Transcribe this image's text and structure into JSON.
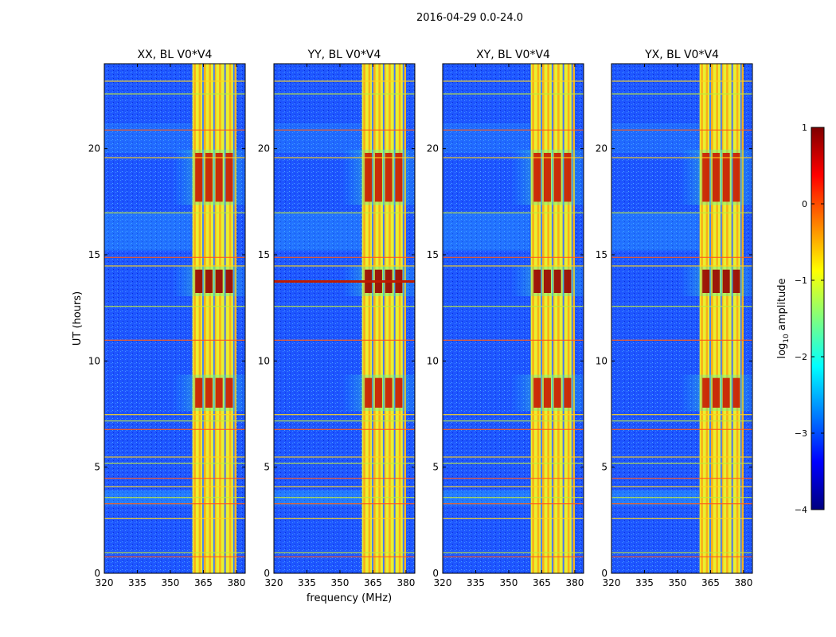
{
  "figure": {
    "suptitle": "2016-04-29 0.0-24.0"
  },
  "chart_data": {
    "type": "heatmap",
    "suptitle": "2016-04-29 0.0-24.0",
    "panels": [
      {
        "title": "XX, BL V0*V4",
        "ylabel": "UT (hours)",
        "xlabel": ""
      },
      {
        "title": "YY, BL V0*V4",
        "ylabel": "",
        "xlabel": "frequency (MHz)"
      },
      {
        "title": "XY, BL V0*V4",
        "ylabel": "",
        "xlabel": ""
      },
      {
        "title": "YX, BL V0*V4",
        "ylabel": "",
        "xlabel": ""
      }
    ],
    "xlim": [
      320,
      384
    ],
    "ylim": [
      0,
      24
    ],
    "xticks": [
      320,
      335,
      350,
      365,
      380
    ],
    "yticks": [
      0,
      5,
      10,
      15,
      20
    ],
    "colorbar": {
      "label": "log10 amplitude",
      "label_main": "log",
      "label_sub": "10",
      "label_rest": " amplitude",
      "range": [
        -4,
        1
      ],
      "ticks": [
        1,
        0,
        -1,
        -2,
        -3,
        -4
      ],
      "tick_labels": [
        "1",
        "0",
        "−1",
        "−2",
        "−3",
        "−4"
      ],
      "colormap": "jet",
      "colors": [
        "#00007f",
        "#0000ff",
        "#007fff",
        "#00ffff",
        "#7fff7f",
        "#ffff00",
        "#ff7f00",
        "#ff0000",
        "#7f0000"
      ]
    },
    "features": {
      "bright_band_mhz": [
        360,
        380
      ],
      "band_lines_mhz": [
        364.5,
        369.5,
        374.5,
        378.5
      ],
      "horizontal_lines_ut": [
        0.8,
        1.0,
        2.6,
        3.3,
        3.6,
        4.1,
        4.5,
        5.2,
        5.5,
        6.8,
        7.2,
        7.5,
        11.0,
        12.6,
        14.5,
        14.9,
        17.0,
        19.6,
        20.9,
        22.6,
        23.2
      ],
      "strong_bursts_ut": [
        [
          13.2,
          14.3
        ],
        [
          7.8,
          9.2
        ],
        [
          17.5,
          19.8
        ]
      ]
    }
  }
}
